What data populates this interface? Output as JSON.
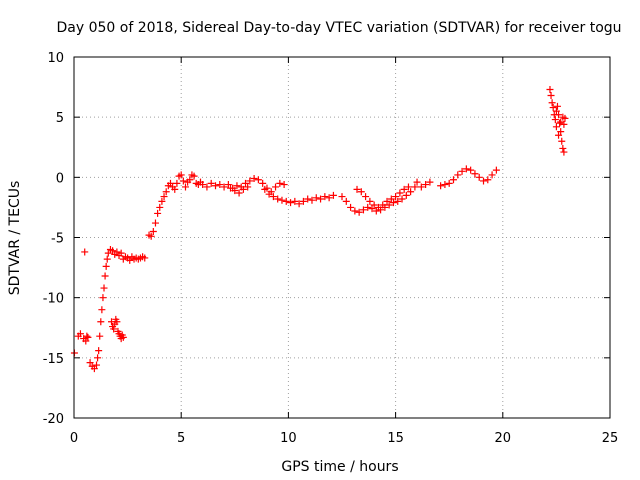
{
  "chart_data": {
    "type": "scatter",
    "title": "Day 050 of 2018, Sidereal Day-to-day VTEC variation (SDTVAR) for receiver togu",
    "xlabel": "GPS time / hours",
    "ylabel": "SDTVAR / TECUs",
    "xlim": [
      0,
      25
    ],
    "ylim": [
      -20,
      10
    ],
    "xticks": [
      "0",
      "5",
      "10",
      "15",
      "20",
      "25"
    ],
    "yticks": [
      "-20",
      "-15",
      "-10",
      "-5",
      "0",
      "5",
      "10"
    ],
    "grid": true,
    "marker": "+",
    "colors": {
      "series": "#ff0000",
      "grid": "#a0a0a0",
      "axis": "#000000"
    },
    "series": [
      {
        "name": "SDTVAR",
        "points": [
          [
            0.02,
            -14.6
          ],
          [
            0.2,
            -13.2
          ],
          [
            0.3,
            -13.0
          ],
          [
            0.45,
            -13.4
          ],
          [
            0.55,
            -13.6
          ],
          [
            0.6,
            -13.2
          ],
          [
            0.65,
            -13.3
          ],
          [
            0.5,
            -6.2
          ],
          [
            0.75,
            -15.4
          ],
          [
            0.85,
            -15.7
          ],
          [
            0.95,
            -15.9
          ],
          [
            1.05,
            -15.6
          ],
          [
            1.1,
            -15.0
          ],
          [
            1.15,
            -14.4
          ],
          [
            1.2,
            -13.2
          ],
          [
            1.25,
            -12.0
          ],
          [
            1.3,
            -11.0
          ],
          [
            1.35,
            -10.0
          ],
          [
            1.4,
            -9.2
          ],
          [
            1.45,
            -8.2
          ],
          [
            1.5,
            -7.4
          ],
          [
            1.55,
            -6.8
          ],
          [
            1.6,
            -6.3
          ],
          [
            1.7,
            -6.0
          ],
          [
            1.8,
            -6.1
          ],
          [
            1.9,
            -6.4
          ],
          [
            2.0,
            -6.2
          ],
          [
            2.1,
            -6.5
          ],
          [
            2.2,
            -6.3
          ],
          [
            2.3,
            -6.8
          ],
          [
            2.4,
            -6.6
          ],
          [
            2.5,
            -6.7
          ],
          [
            2.6,
            -6.9
          ],
          [
            2.7,
            -6.6
          ],
          [
            2.8,
            -6.8
          ],
          [
            2.9,
            -6.7
          ],
          [
            3.0,
            -6.8
          ],
          [
            3.1,
            -6.7
          ],
          [
            3.2,
            -6.6
          ],
          [
            3.3,
            -6.7
          ],
          [
            1.75,
            -12.0
          ],
          [
            1.8,
            -12.4
          ],
          [
            1.85,
            -12.6
          ],
          [
            1.9,
            -12.2
          ],
          [
            1.95,
            -11.8
          ],
          [
            2.0,
            -12.0
          ],
          [
            2.05,
            -12.8
          ],
          [
            2.1,
            -13.0
          ],
          [
            2.15,
            -13.2
          ],
          [
            2.2,
            -13.4
          ],
          [
            2.25,
            -13.1
          ],
          [
            2.3,
            -13.3
          ],
          [
            3.5,
            -4.8
          ],
          [
            3.6,
            -4.9
          ],
          [
            3.7,
            -4.5
          ],
          [
            3.8,
            -3.8
          ],
          [
            3.9,
            -3.0
          ],
          [
            4.0,
            -2.5
          ],
          [
            4.1,
            -2.0
          ],
          [
            4.2,
            -1.6
          ],
          [
            4.3,
            -1.2
          ],
          [
            4.4,
            -0.7
          ],
          [
            4.5,
            -0.5
          ],
          [
            4.6,
            -0.8
          ],
          [
            4.7,
            -1.0
          ],
          [
            4.8,
            -0.5
          ],
          [
            4.9,
            0.1
          ],
          [
            5.0,
            0.2
          ],
          [
            5.1,
            -0.3
          ],
          [
            5.2,
            -0.8
          ],
          [
            5.3,
            -0.4
          ],
          [
            5.4,
            -0.2
          ],
          [
            5.5,
            0.2
          ],
          [
            5.6,
            0.1
          ],
          [
            5.7,
            -0.5
          ],
          [
            5.8,
            -0.6
          ],
          [
            5.9,
            -0.4
          ],
          [
            6.0,
            -0.6
          ],
          [
            6.2,
            -0.8
          ],
          [
            6.4,
            -0.5
          ],
          [
            6.6,
            -0.7
          ],
          [
            6.8,
            -0.6
          ],
          [
            7.0,
            -0.8
          ],
          [
            7.2,
            -0.6
          ],
          [
            7.4,
            -0.9
          ],
          [
            7.6,
            -0.7
          ],
          [
            7.8,
            -0.8
          ],
          [
            8.0,
            -0.5
          ],
          [
            8.2,
            -0.3
          ],
          [
            8.4,
            -0.1
          ],
          [
            8.6,
            -0.2
          ],
          [
            8.8,
            -0.5
          ],
          [
            9.0,
            -0.9
          ],
          [
            9.2,
            -1.2
          ],
          [
            9.4,
            -0.8
          ],
          [
            9.6,
            -0.5
          ],
          [
            9.8,
            -0.6
          ],
          [
            7.3,
            -0.9
          ],
          [
            7.5,
            -1.1
          ],
          [
            7.7,
            -1.3
          ],
          [
            7.9,
            -1.0
          ],
          [
            8.1,
            -0.8
          ],
          [
            8.9,
            -1.0
          ],
          [
            9.1,
            -1.4
          ],
          [
            9.3,
            -1.6
          ],
          [
            9.5,
            -1.8
          ],
          [
            9.7,
            -1.9
          ],
          [
            9.9,
            -2.0
          ],
          [
            10.1,
            -2.1
          ],
          [
            10.3,
            -2.0
          ],
          [
            10.5,
            -2.2
          ],
          [
            10.7,
            -2.0
          ],
          [
            10.9,
            -1.8
          ],
          [
            11.1,
            -1.9
          ],
          [
            11.3,
            -1.7
          ],
          [
            11.5,
            -1.8
          ],
          [
            11.7,
            -1.6
          ],
          [
            11.9,
            -1.7
          ],
          [
            12.1,
            -1.5
          ],
          [
            12.5,
            -1.6
          ],
          [
            12.7,
            -2.0
          ],
          [
            12.9,
            -2.5
          ],
          [
            13.1,
            -2.8
          ],
          [
            13.3,
            -2.9
          ],
          [
            13.5,
            -2.7
          ],
          [
            13.7,
            -2.5
          ],
          [
            13.9,
            -2.6
          ],
          [
            14.1,
            -2.8
          ],
          [
            14.3,
            -2.7
          ],
          [
            14.5,
            -2.5
          ],
          [
            14.7,
            -2.3
          ],
          [
            14.9,
            -2.1
          ],
          [
            15.1,
            -2.0
          ],
          [
            15.3,
            -1.8
          ],
          [
            15.5,
            -1.5
          ],
          [
            15.7,
            -1.2
          ],
          [
            15.9,
            -0.8
          ],
          [
            13.2,
            -1.0
          ],
          [
            13.4,
            -1.2
          ],
          [
            13.6,
            -1.6
          ],
          [
            13.8,
            -2.0
          ],
          [
            14.0,
            -2.3
          ],
          [
            14.2,
            -2.5
          ],
          [
            14.4,
            -2.3
          ],
          [
            14.6,
            -2.0
          ],
          [
            14.8,
            -1.8
          ],
          [
            15.0,
            -1.6
          ],
          [
            15.2,
            -1.3
          ],
          [
            15.4,
            -1.0
          ],
          [
            15.6,
            -0.8
          ],
          [
            16.0,
            -0.4
          ],
          [
            16.2,
            -0.8
          ],
          [
            16.4,
            -0.6
          ],
          [
            16.6,
            -0.4
          ],
          [
            17.1,
            -0.7
          ],
          [
            17.3,
            -0.6
          ],
          [
            17.5,
            -0.5
          ],
          [
            17.7,
            -0.2
          ],
          [
            17.9,
            0.2
          ],
          [
            18.1,
            0.5
          ],
          [
            18.3,
            0.7
          ],
          [
            18.5,
            0.6
          ],
          [
            18.7,
            0.3
          ],
          [
            18.9,
            0.0
          ],
          [
            19.1,
            -0.3
          ],
          [
            19.3,
            -0.2
          ],
          [
            19.5,
            0.2
          ],
          [
            19.7,
            0.6
          ],
          [
            22.2,
            7.3
          ],
          [
            22.25,
            6.8
          ],
          [
            22.3,
            6.2
          ],
          [
            22.35,
            5.8
          ],
          [
            22.4,
            5.2
          ],
          [
            22.45,
            4.8
          ],
          [
            22.5,
            5.5
          ],
          [
            22.55,
            5.9
          ],
          [
            22.6,
            5.2
          ],
          [
            22.65,
            4.5
          ],
          [
            22.7,
            3.8
          ],
          [
            22.75,
            3.0
          ],
          [
            22.8,
            2.4
          ],
          [
            22.85,
            2.1
          ],
          [
            22.5,
            4.2
          ],
          [
            22.6,
            3.5
          ],
          [
            22.7,
            4.6
          ],
          [
            22.8,
            5.0
          ],
          [
            22.85,
            4.4
          ],
          [
            22.9,
            4.9
          ]
        ]
      }
    ]
  }
}
